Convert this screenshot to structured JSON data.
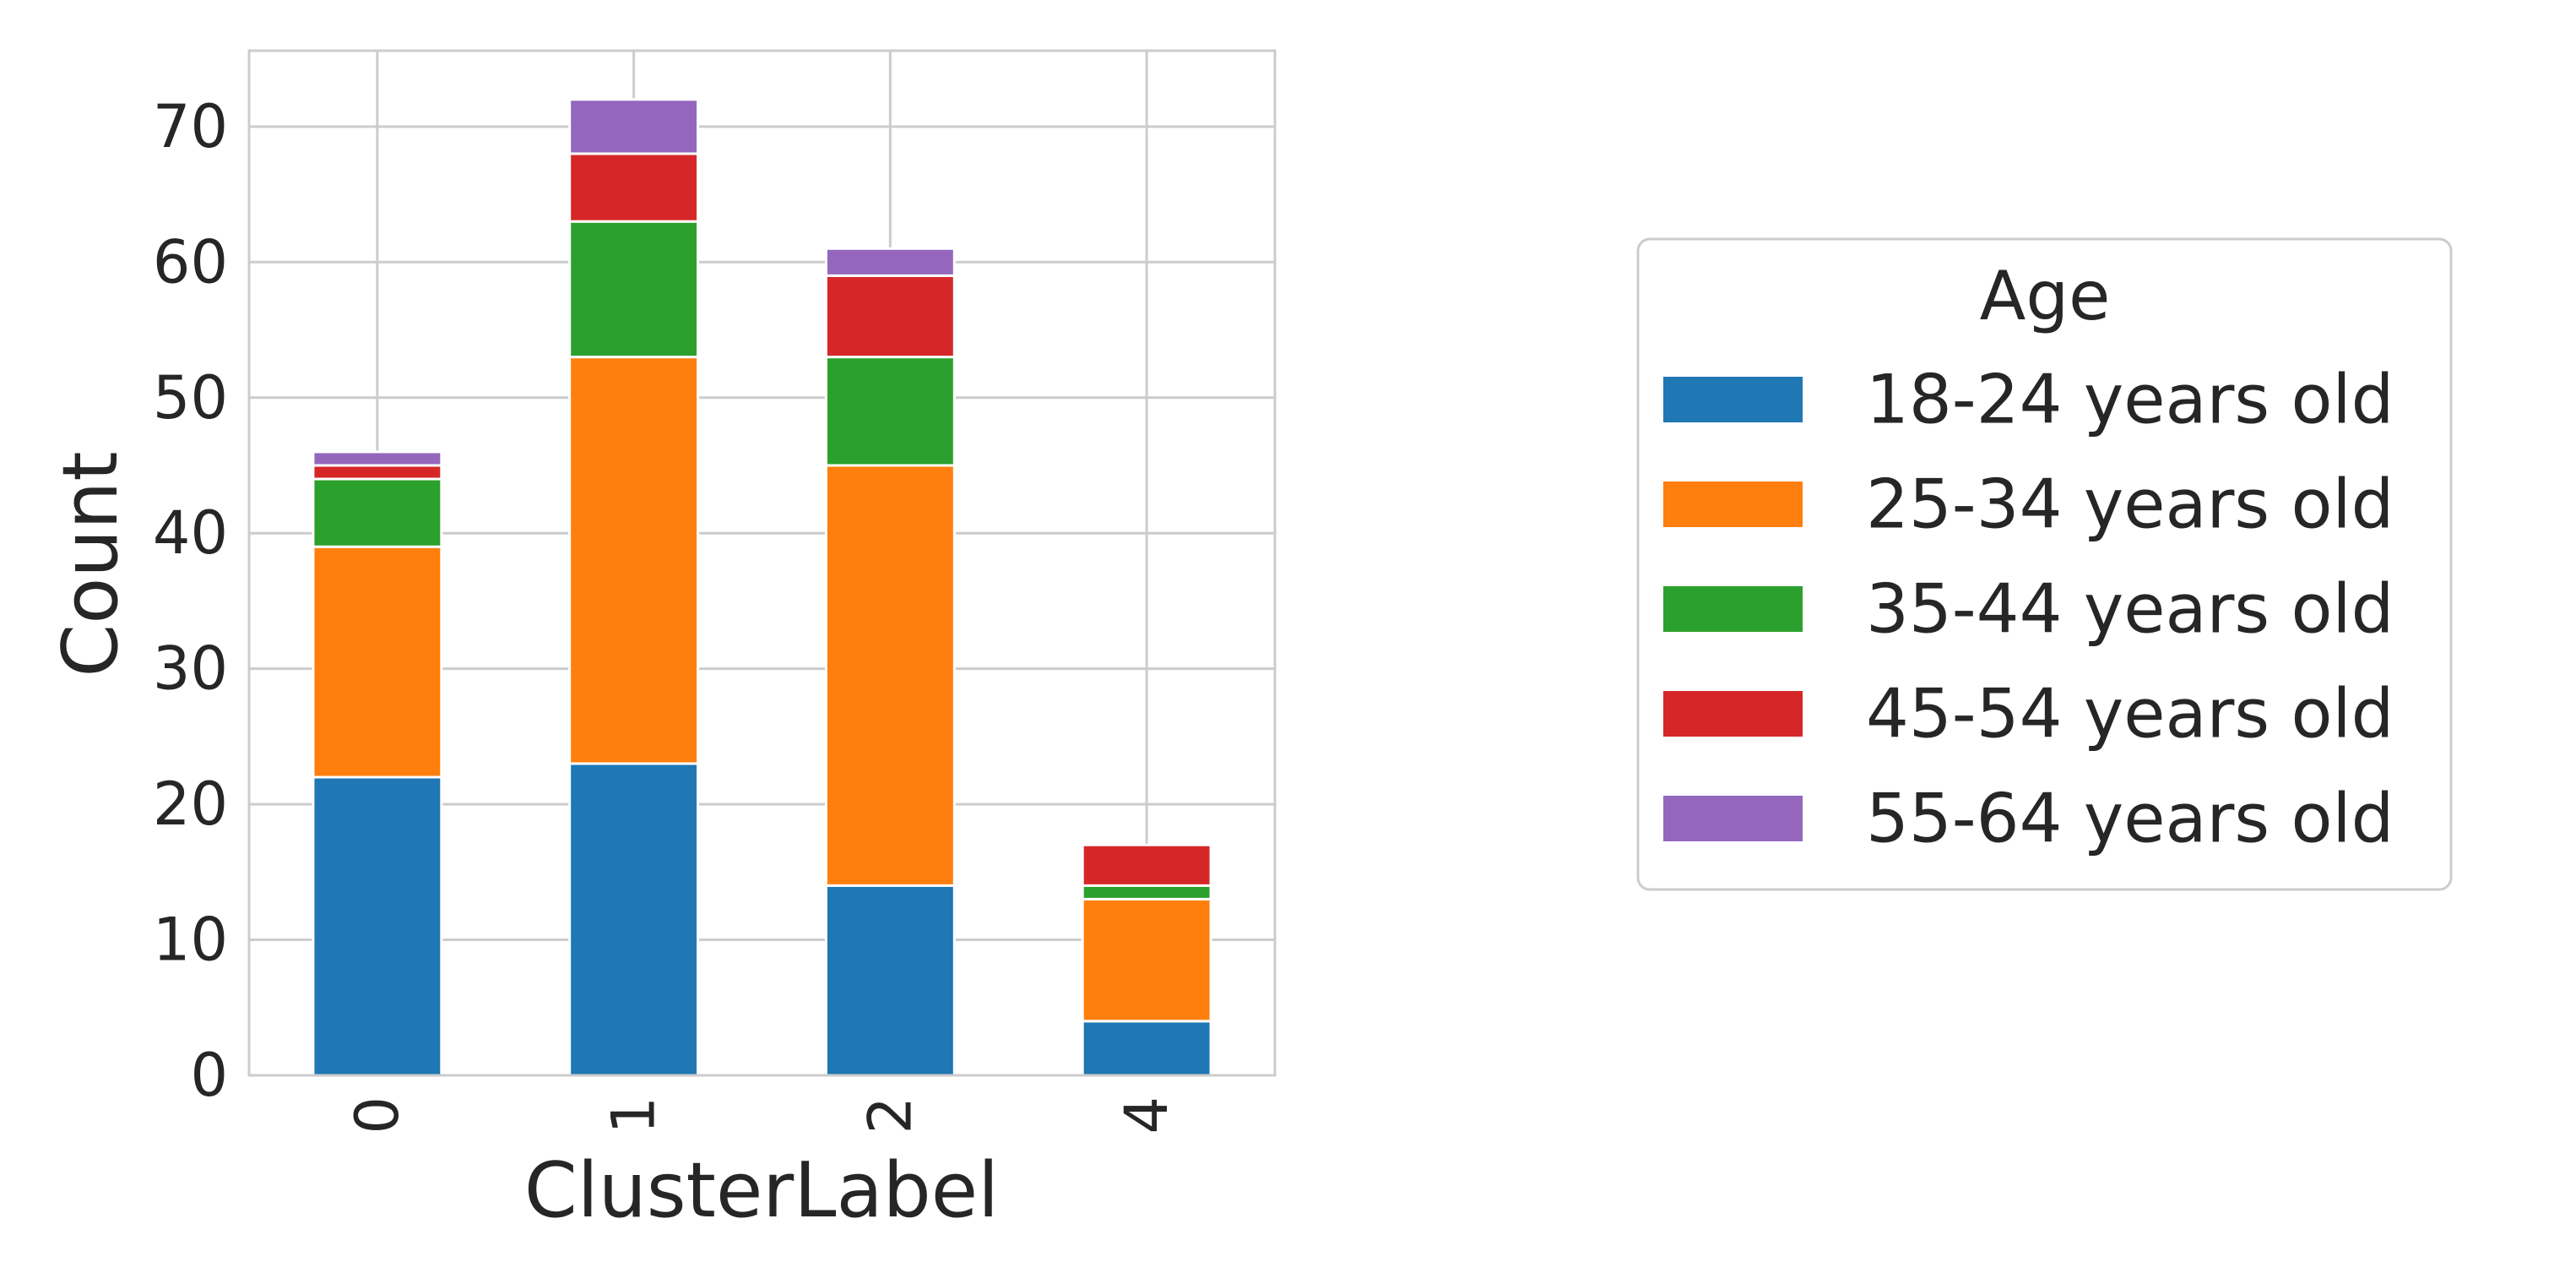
{
  "chart_data": {
    "type": "bar",
    "stacked": true,
    "orientation": "vertical",
    "categories": [
      "0",
      "1",
      "2",
      "4"
    ],
    "series": [
      {
        "name": "18-24 years old",
        "color": "#1f77b4",
        "values": [
          22,
          23,
          14,
          4
        ]
      },
      {
        "name": "25-34 years old",
        "color": "#ff7f0e",
        "values": [
          17,
          30,
          31,
          9
        ]
      },
      {
        "name": "35-44 years old",
        "color": "#2ca02c",
        "values": [
          5,
          10,
          8,
          1
        ]
      },
      {
        "name": "45-54 years old",
        "color": "#d62728",
        "values": [
          1,
          5,
          6,
          3
        ]
      },
      {
        "name": "55-64 years old",
        "color": "#9467bd",
        "values": [
          1,
          4,
          2,
          0
        ]
      }
    ],
    "title": "",
    "xlabel": "ClusterLabel",
    "ylabel": "Count",
    "ylim": [
      0,
      75.6
    ],
    "yticks": [
      0,
      10,
      20,
      30,
      40,
      50,
      60,
      70
    ],
    "xtick_rotation": 90,
    "grid": true,
    "legend": {
      "title": "Age",
      "placement": "right, outside plot area"
    }
  }
}
